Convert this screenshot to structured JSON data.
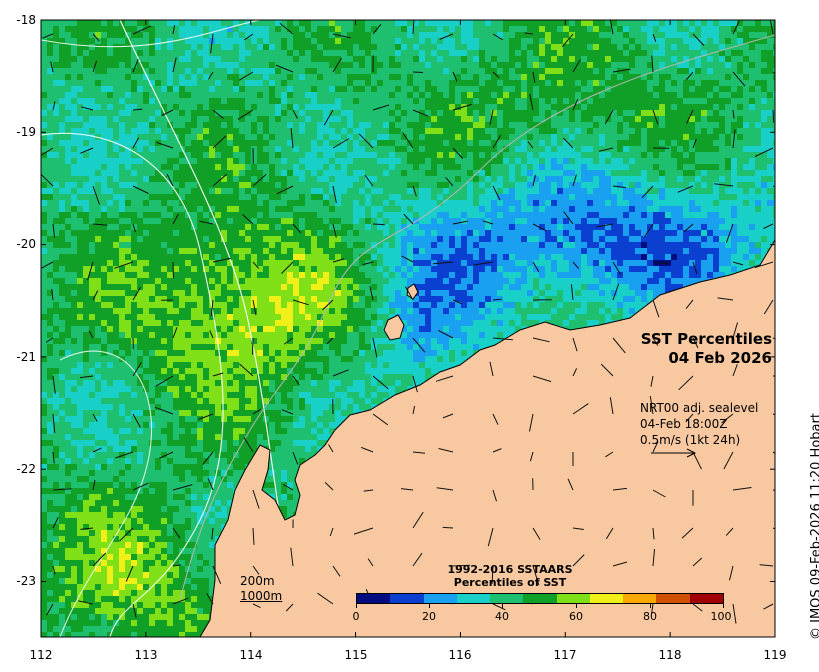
{
  "map": {
    "title": "SST Percentiles\n04 Feb 2026",
    "vector_info": "NRT00 adj. sealevel\n04-Feb 18:00Z\n0.5m/s (1kt 24h)",
    "depth_contours": [
      "200m",
      "1000m"
    ],
    "credit": "© IMOS 09-Feb-2026 11:20 Hobart",
    "lat_labels": [
      "-18",
      "-19",
      "-20",
      "-21",
      "-22",
      "-23"
    ],
    "lon_labels": [
      "112",
      "113",
      "114",
      "115",
      "116",
      "117",
      "118",
      "119"
    ],
    "extent": {
      "lon": [
        112,
        119
      ],
      "lat": [
        -23.5,
        -18
      ]
    },
    "land_color": "#f8c9a0",
    "colorbar": {
      "title": "1992-2016 SSTAARS\nPercentiles of SST",
      "tick_labels": [
        "0",
        "20",
        "40",
        "60",
        "80",
        "100"
      ],
      "colors": [
        "#000c80",
        "#0a3fd0",
        "#1aa0f0",
        "#18d0c8",
        "#1ec070",
        "#10a028",
        "#80e018",
        "#f0f018",
        "#f8a800",
        "#d05000",
        "#a00000"
      ]
    },
    "palette_field": [
      "#0a3fd0",
      "#1aa0f0",
      "#18d0c8",
      "#1ec070",
      "#10a028",
      "#80e018",
      "#f0f018",
      "#f8a800",
      "#000c80"
    ]
  }
}
